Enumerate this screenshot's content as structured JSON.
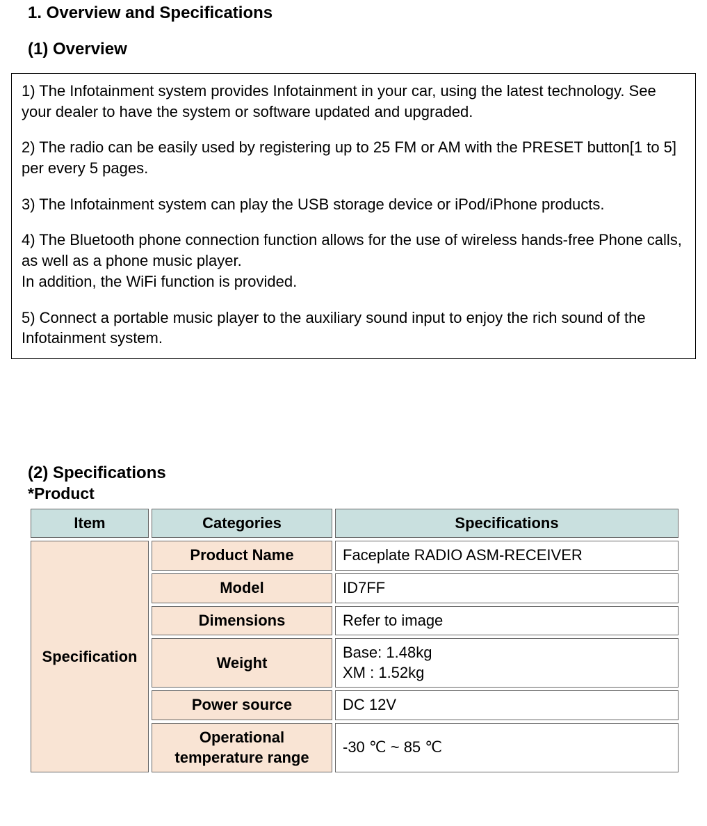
{
  "headings": {
    "main": "1. Overview and Specifications",
    "overview": "(1) Overview",
    "specifications": "(2) Specifications",
    "product_note": "*Product"
  },
  "overview_items": [
    "1) The Infotainment system provides Infotainment in your car, using the latest technology.  See your dealer to have the system or software updated and upgraded.",
    "2) The radio can be easily used by registering up to 25 FM or AM with the PRESET  button[1 to 5] per every 5 pages.",
    "3) The Infotainment system can play the USB storage device or iPod/iPhone products.",
    "4) The Bluetooth phone connection function allows for the use of wireless hands-free Phone calls, as well as a phone music player.\nIn addition, the WiFi function is provided.",
    "5) Connect a portable music player to the auxiliary sound input to enjoy the rich sound of  the Infotainment system."
  ],
  "table": {
    "columns": [
      "Item",
      "Categories",
      "Specifications"
    ],
    "header_bg": "#c9e0df",
    "item_bg": "#f9e4d4",
    "category_bg": "#f9e4d4",
    "border_color": "#666666",
    "item_label": "Specification",
    "rows": [
      {
        "category": "Product Name",
        "spec": "Faceplate RADIO ASM-RECEIVER"
      },
      {
        "category": "Model",
        "spec": "ID7FF"
      },
      {
        "category": "Dimensions",
        "spec": "Refer to image"
      },
      {
        "category": "Weight",
        "spec": "Base: 1.48kg\nXM : 1.52kg"
      },
      {
        "category": "Power source",
        "spec": "DC 12V"
      },
      {
        "category": "Operational temperature range",
        "spec": "-30 ℃ ~ 85 ℃"
      }
    ]
  }
}
